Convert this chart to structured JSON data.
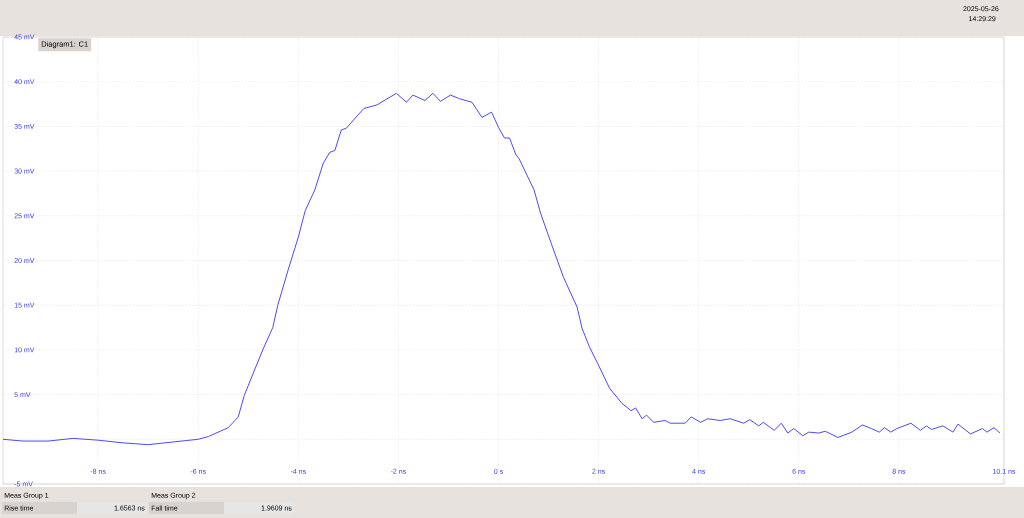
{
  "chart_data": {
    "type": "line",
    "title": "Diagram1: C1",
    "x": [
      -9.9,
      -9.5,
      -9,
      -8.5,
      -8,
      -7.5,
      -7,
      -6.5,
      -6,
      -5.8,
      -5.6,
      -5.4,
      -5.2,
      -5.08,
      -4.9,
      -4.71,
      -4.51,
      -4.41,
      -4.2,
      -4.0,
      -3.86,
      -3.67,
      -3.5,
      -3.37,
      -3.27,
      -3.14,
      -3.04,
      -2.82,
      -2.69,
      -2.43,
      -2.04,
      -1.84,
      -1.71,
      -1.47,
      -1.31,
      -1.16,
      -0.96,
      -0.78,
      -0.53,
      -0.33,
      -0.14,
      0,
      0.12,
      0.22,
      0.35,
      0.41,
      0.71,
      0.84,
      1.08,
      1.3,
      1.57,
      1.67,
      1.82,
      1.98,
      2.22,
      2.47,
      2.65,
      2.74,
      2.87,
      2.96,
      3.1,
      3.33,
      3.43,
      3.73,
      3.85,
      4.04,
      4.18,
      4.43,
      4.63,
      4.9,
      5.02,
      5.2,
      5.29,
      5.51,
      5.65,
      5.78,
      5.9,
      6.08,
      6.2,
      6.4,
      6.53,
      6.78,
      7.06,
      7.27,
      7.45,
      7.61,
      7.71,
      7.84,
      7.96,
      8.24,
      8.43,
      8.55,
      8.65,
      8.88,
      9.08,
      9.18,
      9.43,
      9.67,
      9.76,
      9.9,
      10.02
    ],
    "series": [
      {
        "color": "#4b4bf0",
        "values": [
          0,
          -0.2,
          -0.2,
          0.1,
          -0.1,
          -0.4,
          -0.6,
          -0.3,
          0,
          0.3,
          0.8,
          1.3,
          2.5,
          4.9,
          7.4,
          10.0,
          12.5,
          15.0,
          19.0,
          22.6,
          25.6,
          27.9,
          30.9,
          32.1,
          32.3,
          34.6,
          34.8,
          36.2,
          37.0,
          37.4,
          38.7,
          37.7,
          38.5,
          37.9,
          38.7,
          37.8,
          38.5,
          38.1,
          37.7,
          36.0,
          36.6,
          34.9,
          33.7,
          33.7,
          31.8,
          31.4,
          27.9,
          25.3,
          21.5,
          18.1,
          14.8,
          12.4,
          10.3,
          8.5,
          5.7,
          4.0,
          3.2,
          3.5,
          2.3,
          2.7,
          1.9,
          2.1,
          1.8,
          1.8,
          2.5,
          1.9,
          2.3,
          2.1,
          2.3,
          1.8,
          2.2,
          1.5,
          1.9,
          1.0,
          1.8,
          0.7,
          1.2,
          0.4,
          0.8,
          0.7,
          0.9,
          0.2,
          0.8,
          1.6,
          1.2,
          0.8,
          1.3,
          0.8,
          1.2,
          1.8,
          1.0,
          1.5,
          1.1,
          1.5,
          0.8,
          1.7,
          0.6,
          1.2,
          0.8,
          1.3,
          0.7
        ]
      }
    ],
    "xlim": [
      -9.9,
      10.1
    ],
    "ylim": [
      -5,
      45
    ],
    "xticks": [
      {
        "value": -8,
        "label": "-8 ns"
      },
      {
        "value": -6,
        "label": "-6 ns"
      },
      {
        "value": -4,
        "label": "-4 ns"
      },
      {
        "value": -2,
        "label": "-2 ns"
      },
      {
        "value": 0,
        "label": "0 s"
      },
      {
        "value": 2,
        "label": "2 ns"
      },
      {
        "value": 4,
        "label": "4 ns"
      },
      {
        "value": 6,
        "label": "6 ns"
      },
      {
        "value": 8,
        "label": "8 ns"
      },
      {
        "value": 10.1,
        "label": "10.1 ns"
      }
    ],
    "yticks": [
      {
        "value": -5,
        "label": "-5 mV"
      },
      {
        "value": 0,
        "label": null
      },
      {
        "value": 5,
        "label": "5 mV"
      },
      {
        "value": 10,
        "label": "10 mV"
      },
      {
        "value": 15,
        "label": "15 mV"
      },
      {
        "value": 20,
        "label": "20 mV"
      },
      {
        "value": 25,
        "label": "25 mV"
      },
      {
        "value": 30,
        "label": "30 mV"
      },
      {
        "value": 35,
        "label": "35 mV"
      },
      {
        "value": 40,
        "label": "40 mV"
      },
      {
        "value": 45,
        "label": "45 mV"
      }
    ],
    "grid": true,
    "annotations": [
      "2025-05-26",
      "14:29:29",
      "Meas Group 1",
      "Rise time",
      "1.6563 ns",
      "Meas Group 2",
      "Fall time",
      "1.9609 ns"
    ]
  }
}
